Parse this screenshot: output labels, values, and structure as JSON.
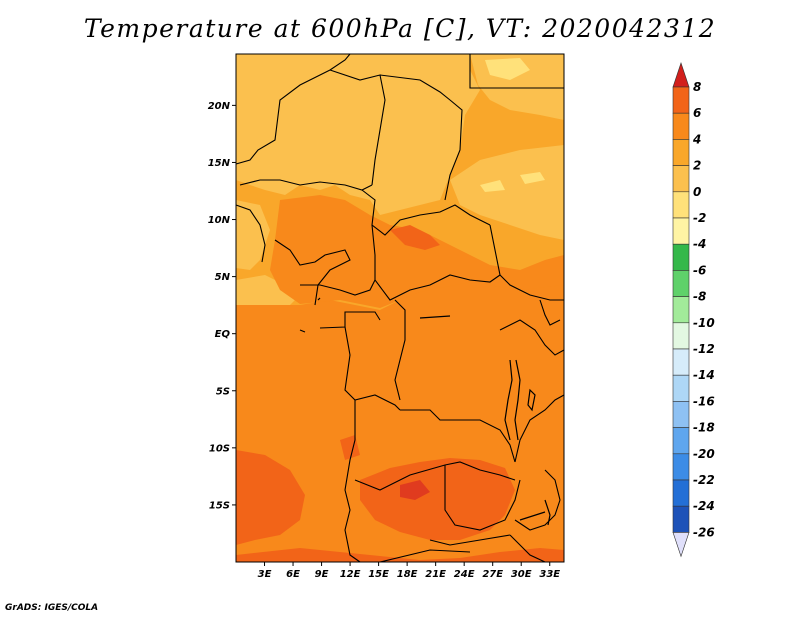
{
  "title": "Temperature at 600hPa [C], VT: 2020042312",
  "credit": "GrADS: IGES/COLA",
  "map": {
    "lat_labels": [
      "20N",
      "15N",
      "10N",
      "5N",
      "EQ",
      "5S",
      "10S",
      "15S"
    ],
    "lat_values": [
      20,
      15,
      10,
      5,
      0,
      -5,
      -10,
      -15
    ],
    "lon_labels": [
      "3E",
      "6E",
      "9E",
      "12E",
      "15E",
      "18E",
      "21E",
      "24E",
      "27E",
      "30E",
      "33E"
    ],
    "lon_values": [
      3,
      6,
      9,
      12,
      15,
      18,
      21,
      24,
      27,
      30,
      33
    ],
    "lon_range": [
      0,
      34.5
    ],
    "lat_range": [
      -20,
      24.5
    ],
    "dominant_color": "#f9a72a"
  },
  "colorbar": {
    "levels": [
      "8",
      "6",
      "4",
      "2",
      "0",
      "-2",
      "-4",
      "-6",
      "-8",
      "-10",
      "-12",
      "-14",
      "-16",
      "-18",
      "-20",
      "-22",
      "-24",
      "-26"
    ],
    "colors": [
      "#e03b1f",
      "#f26418",
      "#f8891b",
      "#f9a72a",
      "#fbc04e",
      "#ffe17a",
      "#fff4a4",
      "#34b84a",
      "#5fd16a",
      "#a2eb9a",
      "#e3f8e2",
      "#d6ecfa",
      "#aed7f6",
      "#8ec1f3",
      "#5fa6ee",
      "#3c8ce6",
      "#236fd6",
      "#1d52b8",
      "#0a1a6e"
    ],
    "top_arrow_color": "#d21f1c",
    "bottom_arrow_color": "#e0e0fb"
  }
}
